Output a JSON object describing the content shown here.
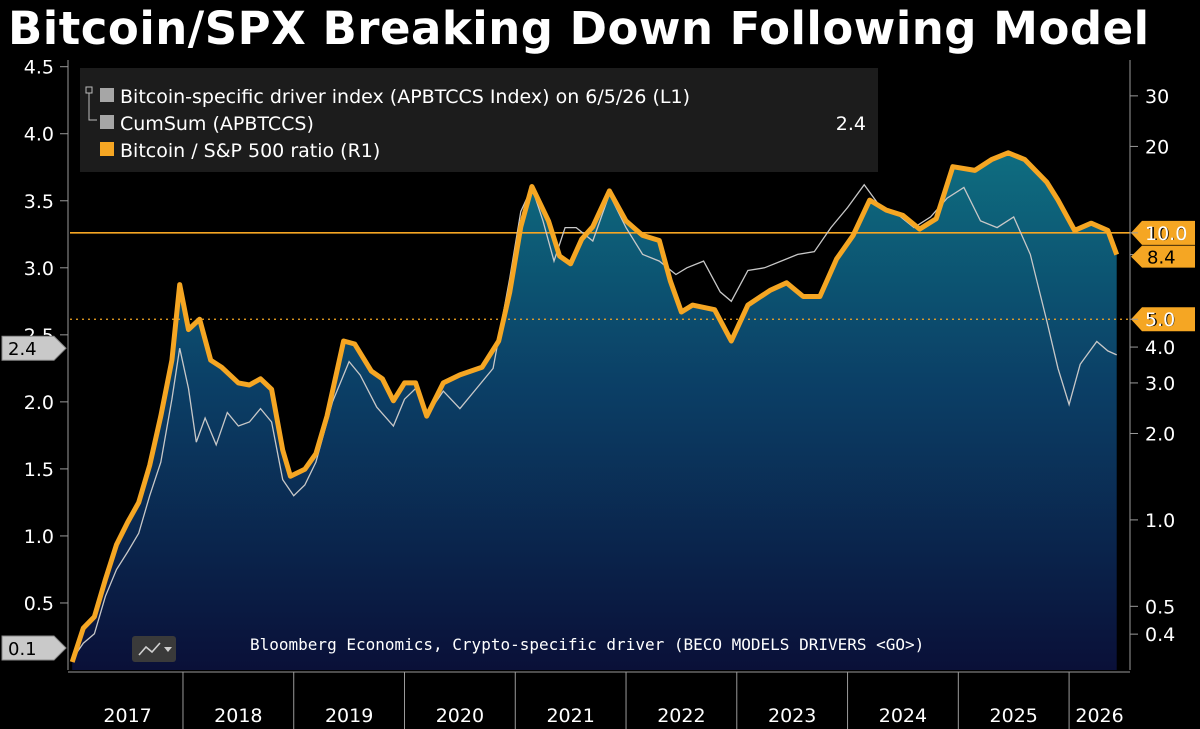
{
  "title": "Bitcoin/SPX Breaking Down Following Model",
  "source": "Bloomberg Economics, Crypto-specific driver (BECO MODELS DRIVERS <GO>)",
  "legend": {
    "items": [
      {
        "label": "Bitcoin-specific driver index (APBTCCS Index) on 6/5/26 (L1)",
        "color": "#a6a6a6",
        "value": ""
      },
      {
        "label": "CumSum (APBTCCS)",
        "color": "#a6a6a6",
        "value": "2.4"
      },
      {
        "label": "Bitcoin / S&P 500 ratio (R1)",
        "color": "#f5a623",
        "value": ""
      }
    ]
  },
  "chart_data": {
    "type": "line",
    "x_categories": [
      "2017",
      "2018",
      "2019",
      "2020",
      "2021",
      "2022",
      "2023",
      "2024",
      "2025",
      "2026"
    ],
    "left_axis": {
      "ticks": [
        "0.5",
        "1.0",
        "1.5",
        "2.0",
        "2.5",
        "3.0",
        "3.5",
        "4.0",
        "4.5"
      ],
      "range": [
        0.0,
        4.55
      ],
      "scale": "linear"
    },
    "right_axis": {
      "ticks": [
        "0.4",
        "0.5",
        "1.0",
        "2.0",
        "3.0",
        "4.0",
        "5.0",
        "8.4",
        "10.0",
        "20",
        "30"
      ],
      "range": [
        0.3,
        40
      ],
      "scale": "log"
    },
    "reference_lines": [
      {
        "value": 10.0,
        "axis": "right",
        "style": "solid",
        "color": "#f5a623",
        "label": "10.0"
      },
      {
        "value": 5.0,
        "axis": "right",
        "style": "dotted",
        "color": "#f5a623",
        "label": "5.0"
      }
    ],
    "current_value_tags": [
      {
        "axis": "left",
        "value": 2.4,
        "label": "2.4"
      },
      {
        "axis": "left",
        "value": 0.1,
        "label": "0.1"
      },
      {
        "axis": "right",
        "value": 8.4,
        "label": "8.4"
      }
    ],
    "series": [
      {
        "name": "Bitcoin / S&P 500 ratio (R1)",
        "axis": "right",
        "color": "#f5a623",
        "points": [
          [
            2017.0,
            0.32
          ],
          [
            2017.1,
            0.42
          ],
          [
            2017.2,
            0.46
          ],
          [
            2017.3,
            0.62
          ],
          [
            2017.4,
            0.82
          ],
          [
            2017.5,
            0.98
          ],
          [
            2017.6,
            1.15
          ],
          [
            2017.7,
            1.55
          ],
          [
            2017.8,
            2.3
          ],
          [
            2017.9,
            3.6
          ],
          [
            2017.97,
            6.6
          ],
          [
            2018.05,
            4.6
          ],
          [
            2018.15,
            5.0
          ],
          [
            2018.25,
            3.6
          ],
          [
            2018.35,
            3.4
          ],
          [
            2018.5,
            3.0
          ],
          [
            2018.6,
            2.95
          ],
          [
            2018.7,
            3.1
          ],
          [
            2018.8,
            2.85
          ],
          [
            2018.9,
            1.75
          ],
          [
            2018.97,
            1.42
          ],
          [
            2019.1,
            1.5
          ],
          [
            2019.2,
            1.7
          ],
          [
            2019.3,
            2.3
          ],
          [
            2019.45,
            4.2
          ],
          [
            2019.55,
            4.1
          ],
          [
            2019.7,
            3.3
          ],
          [
            2019.8,
            3.1
          ],
          [
            2019.9,
            2.6
          ],
          [
            2020.0,
            3.0
          ],
          [
            2020.1,
            3.0
          ],
          [
            2020.2,
            2.3
          ],
          [
            2020.35,
            3.0
          ],
          [
            2020.5,
            3.2
          ],
          [
            2020.7,
            3.4
          ],
          [
            2020.85,
            4.2
          ],
          [
            2020.95,
            6.2
          ],
          [
            2021.05,
            10.5
          ],
          [
            2021.15,
            14.5
          ],
          [
            2021.3,
            11.0
          ],
          [
            2021.4,
            8.3
          ],
          [
            2021.5,
            7.8
          ],
          [
            2021.6,
            9.5
          ],
          [
            2021.7,
            10.5
          ],
          [
            2021.85,
            14.0
          ],
          [
            2022.0,
            11.0
          ],
          [
            2022.15,
            9.8
          ],
          [
            2022.3,
            9.4
          ],
          [
            2022.4,
            6.8
          ],
          [
            2022.5,
            5.3
          ],
          [
            2022.6,
            5.6
          ],
          [
            2022.8,
            5.4
          ],
          [
            2022.95,
            4.2
          ],
          [
            2023.1,
            5.6
          ],
          [
            2023.3,
            6.3
          ],
          [
            2023.45,
            6.7
          ],
          [
            2023.6,
            6.0
          ],
          [
            2023.75,
            6.0
          ],
          [
            2023.9,
            8.1
          ],
          [
            2024.05,
            9.8
          ],
          [
            2024.2,
            13.0
          ],
          [
            2024.35,
            12.0
          ],
          [
            2024.5,
            11.5
          ],
          [
            2024.65,
            10.3
          ],
          [
            2024.8,
            11.2
          ],
          [
            2024.95,
            17.0
          ],
          [
            2025.15,
            16.5
          ],
          [
            2025.3,
            18.0
          ],
          [
            2025.45,
            19.0
          ],
          [
            2025.6,
            18.0
          ],
          [
            2025.8,
            15.0
          ],
          [
            2025.9,
            13.0
          ],
          [
            2026.05,
            10.2
          ],
          [
            2026.2,
            10.8
          ],
          [
            2026.35,
            10.2
          ],
          [
            2026.43,
            8.4
          ]
        ]
      },
      {
        "name": "CumSum (APBTCCS)",
        "axis": "left",
        "color": "#c8c8c8",
        "points": [
          [
            2017.0,
            0.08
          ],
          [
            2017.1,
            0.2
          ],
          [
            2017.2,
            0.27
          ],
          [
            2017.3,
            0.55
          ],
          [
            2017.4,
            0.75
          ],
          [
            2017.5,
            0.88
          ],
          [
            2017.6,
            1.02
          ],
          [
            2017.7,
            1.3
          ],
          [
            2017.8,
            1.55
          ],
          [
            2017.9,
            2.02
          ],
          [
            2017.97,
            2.4
          ],
          [
            2018.05,
            2.1
          ],
          [
            2018.12,
            1.7
          ],
          [
            2018.2,
            1.88
          ],
          [
            2018.3,
            1.68
          ],
          [
            2018.4,
            1.92
          ],
          [
            2018.5,
            1.82
          ],
          [
            2018.6,
            1.85
          ],
          [
            2018.7,
            1.95
          ],
          [
            2018.8,
            1.85
          ],
          [
            2018.9,
            1.42
          ],
          [
            2019.0,
            1.3
          ],
          [
            2019.1,
            1.38
          ],
          [
            2019.2,
            1.55
          ],
          [
            2019.35,
            2.0
          ],
          [
            2019.5,
            2.3
          ],
          [
            2019.6,
            2.2
          ],
          [
            2019.75,
            1.96
          ],
          [
            2019.9,
            1.82
          ],
          [
            2020.0,
            2.02
          ],
          [
            2020.1,
            2.1
          ],
          [
            2020.2,
            1.9
          ],
          [
            2020.35,
            2.08
          ],
          [
            2020.5,
            1.95
          ],
          [
            2020.65,
            2.1
          ],
          [
            2020.8,
            2.25
          ],
          [
            2020.95,
            2.92
          ],
          [
            2021.05,
            3.42
          ],
          [
            2021.15,
            3.6
          ],
          [
            2021.25,
            3.35
          ],
          [
            2021.35,
            3.05
          ],
          [
            2021.45,
            3.3
          ],
          [
            2021.55,
            3.3
          ],
          [
            2021.7,
            3.2
          ],
          [
            2021.85,
            3.55
          ],
          [
            2022.0,
            3.3
          ],
          [
            2022.15,
            3.1
          ],
          [
            2022.3,
            3.05
          ],
          [
            2022.45,
            2.95
          ],
          [
            2022.55,
            3.0
          ],
          [
            2022.7,
            3.05
          ],
          [
            2022.85,
            2.82
          ],
          [
            2022.95,
            2.75
          ],
          [
            2023.1,
            2.98
          ],
          [
            2023.25,
            3.0
          ],
          [
            2023.4,
            3.05
          ],
          [
            2023.55,
            3.1
          ],
          [
            2023.7,
            3.12
          ],
          [
            2023.85,
            3.3
          ],
          [
            2024.0,
            3.45
          ],
          [
            2024.15,
            3.62
          ],
          [
            2024.3,
            3.45
          ],
          [
            2024.45,
            3.4
          ],
          [
            2024.6,
            3.3
          ],
          [
            2024.75,
            3.38
          ],
          [
            2024.9,
            3.52
          ],
          [
            2025.05,
            3.6
          ],
          [
            2025.2,
            3.35
          ],
          [
            2025.35,
            3.3
          ],
          [
            2025.5,
            3.38
          ],
          [
            2025.65,
            3.1
          ],
          [
            2025.8,
            2.6
          ],
          [
            2025.9,
            2.25
          ],
          [
            2026.0,
            1.98
          ],
          [
            2026.1,
            2.28
          ],
          [
            2026.25,
            2.45
          ],
          [
            2026.35,
            2.38
          ],
          [
            2026.43,
            2.35
          ]
        ]
      }
    ]
  }
}
